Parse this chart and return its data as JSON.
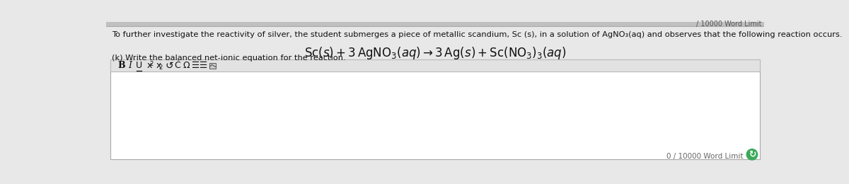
{
  "bg_outer": "#c8c8c8",
  "bg_main": "#e8e8e8",
  "editor_bg": "#f5f5f5",
  "editor_border": "#aaaaaa",
  "toolbar_bg": "#e2e2e2",
  "toolbar_border": "#bbbbbb",
  "text_color": "#111111",
  "subtext_color": "#444444",
  "word_limit_color": "#666666",
  "desc_text": "To further investigate the reactivity of silver, the student submerges a piece of metallic scandium, Sc (s), in a solution of AgNO₃(aq) and observes that the following reaction occurs.",
  "prompt": "(k) Write the balanced net-ionic equation for the reaction.",
  "word_limit_text": "0 / 10000 Word Limit",
  "green_color": "#3aaa5a",
  "top_bar_color": "#b0b0b0",
  "top_bar_text": "/ 10000 Word Limit",
  "equation_fontsize": 12,
  "desc_fontsize": 8.2,
  "prompt_fontsize": 8.2,
  "toolbar_fontsize": 9.0
}
